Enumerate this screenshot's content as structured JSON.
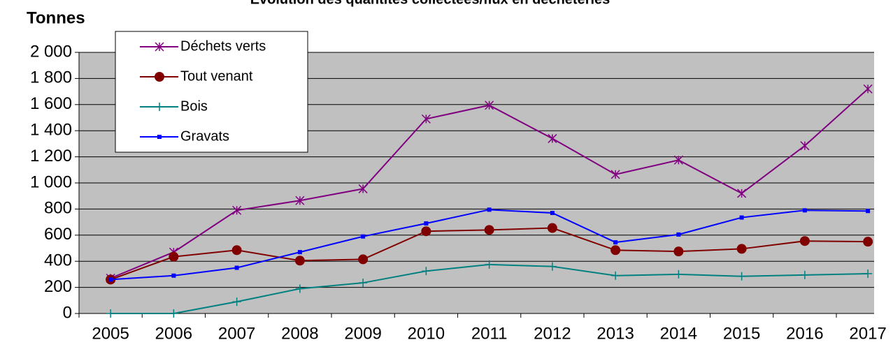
{
  "chart_data": {
    "type": "line",
    "title": "Evolution des quantités collectées/flux en déchèteries",
    "y_label": "Tonnes",
    "categories": [
      "2005",
      "2006",
      "2007",
      "2008",
      "2009",
      "2010",
      "2011",
      "2012",
      "2013",
      "2014",
      "2015",
      "2016",
      "2017"
    ],
    "series": [
      {
        "name": "Déchets verts",
        "color": "#800080",
        "marker": "asterisk",
        "values": [
          270,
          470,
          790,
          865,
          955,
          1490,
          1595,
          1340,
          1065,
          1175,
          920,
          1285,
          1720
        ]
      },
      {
        "name": "Tout venant",
        "color": "#800000",
        "marker": "circle",
        "values": [
          260,
          435,
          485,
          405,
          415,
          630,
          640,
          655,
          485,
          475,
          495,
          555,
          550
        ]
      },
      {
        "name": "Bois",
        "color": "#008080",
        "marker": "plus",
        "values": [
          0,
          0,
          90,
          190,
          235,
          325,
          375,
          360,
          290,
          300,
          285,
          295,
          305
        ]
      },
      {
        "name": "Gravats",
        "color": "#0000ff",
        "marker": "square",
        "values": [
          260,
          290,
          350,
          470,
          590,
          690,
          795,
          770,
          545,
          605,
          735,
          790,
          785
        ]
      }
    ],
    "ylim": [
      0,
      2000
    ],
    "yticks": [
      0,
      200,
      400,
      600,
      800,
      {
        "value": 1000,
        "label": "1 000"
      },
      {
        "value": 1200,
        "label": "1 200"
      },
      {
        "value": 1400,
        "label": "1 400"
      },
      {
        "value": 1600,
        "label": "1 600"
      },
      {
        "value": 1800,
        "label": "1 800"
      },
      {
        "value": 2000,
        "label": "2 000"
      }
    ],
    "grid": true,
    "legend": "upper left"
  }
}
